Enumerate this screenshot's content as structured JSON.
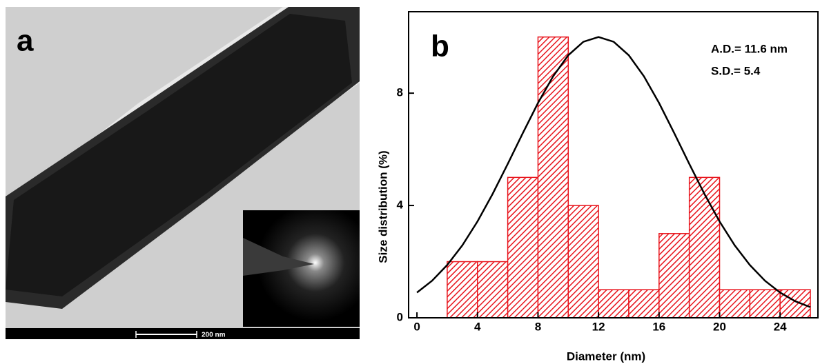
{
  "panel_a": {
    "label": "a",
    "scale_bar": "200 nm"
  },
  "chart_data": {
    "type": "histogram",
    "panel_label": "b",
    "annotations": [
      "A.D.= 11.6 nm",
      "S.D.= 5.4"
    ],
    "x_label": "Diameter (nm)",
    "y_label": "Size distribution (%)",
    "bins": [
      2,
      4,
      6,
      8,
      10,
      12,
      14,
      16,
      18,
      20,
      22,
      24,
      26
    ],
    "counts": [
      2,
      2,
      5,
      10,
      4,
      1,
      1,
      3,
      5,
      1,
      1,
      1
    ],
    "color": "#e8131b",
    "fit": {
      "color": "#000000",
      "x": [
        0,
        1,
        2,
        3,
        4,
        5,
        6,
        7,
        8,
        9,
        10,
        11,
        12,
        13,
        14,
        15,
        16,
        17,
        18,
        19,
        20,
        21,
        22,
        23,
        24,
        25,
        26
      ],
      "y": [
        0.9,
        1.32,
        1.88,
        2.58,
        3.43,
        4.41,
        5.48,
        6.58,
        7.65,
        8.6,
        9.35,
        9.83,
        10,
        9.83,
        9.35,
        8.6,
        7.65,
        6.58,
        5.48,
        4.41,
        3.43,
        2.58,
        1.88,
        1.32,
        0.9,
        0.59,
        0.38
      ]
    },
    "xlim": [
      -0.55,
      26.5
    ],
    "ylim": [
      0,
      10.9
    ],
    "xticks": [
      0,
      4,
      8,
      12,
      16,
      20,
      24
    ],
    "yticks": [
      0,
      4,
      8
    ]
  }
}
